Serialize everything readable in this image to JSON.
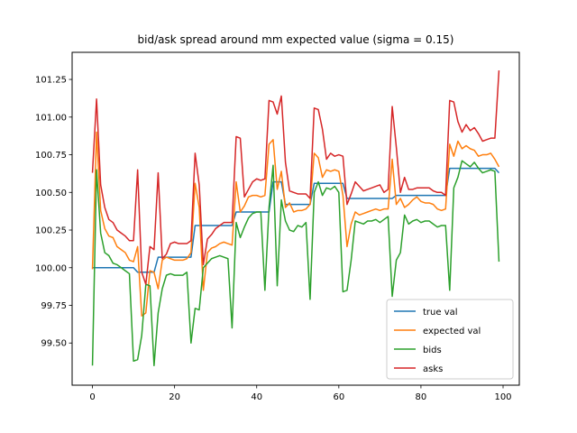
{
  "chart_data": {
    "type": "line",
    "title": "bid/ask spread around mm expected value (sigma = 0.15)",
    "xlabel": "",
    "ylabel": "",
    "xlim": [
      -4.95,
      103.95
    ],
    "ylim": [
      99.22,
      101.43
    ],
    "xticks": [
      0,
      20,
      40,
      60,
      80,
      100
    ],
    "yticks": [
      99.5,
      99.75,
      100.0,
      100.25,
      100.5,
      100.75,
      101.0,
      101.25
    ],
    "ytick_labels": [
      "99.50",
      "99.75",
      "100.00",
      "100.25",
      "100.50",
      "100.75",
      "101.00",
      "101.25"
    ],
    "grid": false,
    "legend_position": "lower right",
    "series": [
      {
        "name": "true val",
        "color": "#1f77b4",
        "x": [
          0,
          1,
          10,
          11,
          15,
          16,
          24,
          25,
          34,
          35,
          43,
          44,
          46,
          47,
          53,
          54,
          61,
          62,
          73,
          74,
          86,
          87,
          98,
          99
        ],
        "y": [
          100.0,
          100.0,
          100.0,
          99.97,
          99.97,
          100.07,
          100.07,
          100.28,
          100.28,
          100.37,
          100.37,
          100.57,
          100.57,
          100.42,
          100.42,
          100.56,
          100.56,
          100.46,
          100.46,
          100.48,
          100.48,
          100.66,
          100.66,
          100.63
        ]
      },
      {
        "name": "expected val",
        "color": "#ff7f0e",
        "x": [
          0,
          1,
          2,
          3,
          4,
          5,
          6,
          7,
          8,
          9,
          10,
          11,
          12,
          13,
          14,
          15,
          16,
          17,
          18,
          19,
          20,
          21,
          22,
          23,
          24,
          25,
          26,
          27,
          28,
          29,
          30,
          31,
          32,
          33,
          34,
          35,
          36,
          37,
          38,
          39,
          40,
          41,
          42,
          43,
          44,
          45,
          46,
          47,
          48,
          49,
          50,
          51,
          52,
          53,
          54,
          55,
          56,
          57,
          58,
          59,
          60,
          61,
          62,
          63,
          64,
          65,
          66,
          67,
          68,
          69,
          70,
          71,
          72,
          73,
          74,
          75,
          76,
          77,
          78,
          79,
          80,
          81,
          82,
          83,
          84,
          85,
          86,
          87,
          88,
          89,
          90,
          91,
          92,
          93,
          94,
          95,
          96,
          97,
          98,
          99
        ],
        "y": [
          99.99,
          100.9,
          100.38,
          100.26,
          100.21,
          100.2,
          100.14,
          100.12,
          100.1,
          100.05,
          100.04,
          100.14,
          99.68,
          99.7,
          99.98,
          99.97,
          99.86,
          100.05,
          100.07,
          100.06,
          100.05,
          100.05,
          100.05,
          100.06,
          100.1,
          100.56,
          100.4,
          99.85,
          100.1,
          100.13,
          100.14,
          100.16,
          100.17,
          100.16,
          100.15,
          100.57,
          100.37,
          100.41,
          100.47,
          100.48,
          100.48,
          100.47,
          100.48,
          100.82,
          100.85,
          100.52,
          100.64,
          100.4,
          100.43,
          100.37,
          100.38,
          100.38,
          100.39,
          100.42,
          100.76,
          100.73,
          100.6,
          100.65,
          100.64,
          100.65,
          100.64,
          100.48,
          100.14,
          100.29,
          100.37,
          100.35,
          100.36,
          100.37,
          100.38,
          100.39,
          100.38,
          100.39,
          100.39,
          100.72,
          100.42,
          100.46,
          100.4,
          100.42,
          100.45,
          100.47,
          100.44,
          100.43,
          100.43,
          100.42,
          100.39,
          100.38,
          100.39,
          100.82,
          100.74,
          100.84,
          100.79,
          100.81,
          100.79,
          100.78,
          100.74,
          100.75,
          100.75,
          100.76,
          100.72,
          100.67
        ]
      },
      {
        "name": "bids",
        "color": "#2ca02c",
        "x": [
          0,
          1,
          2,
          3,
          4,
          5,
          6,
          7,
          8,
          9,
          10,
          11,
          12,
          13,
          14,
          15,
          16,
          17,
          18,
          19,
          20,
          21,
          22,
          23,
          24,
          25,
          26,
          27,
          28,
          29,
          30,
          31,
          32,
          33,
          34,
          35,
          36,
          37,
          38,
          39,
          40,
          41,
          42,
          43,
          44,
          45,
          46,
          47,
          48,
          49,
          50,
          51,
          52,
          53,
          54,
          55,
          56,
          57,
          58,
          59,
          60,
          61,
          62,
          63,
          64,
          65,
          66,
          67,
          68,
          69,
          70,
          71,
          72,
          73,
          74,
          75,
          76,
          77,
          78,
          79,
          80,
          81,
          82,
          83,
          84,
          85,
          86,
          87,
          88,
          89,
          90,
          91,
          92,
          93,
          94,
          95,
          96,
          97,
          98,
          99
        ],
        "y": [
          99.35,
          100.65,
          100.23,
          100.1,
          100.08,
          100.03,
          100.02,
          100.0,
          99.98,
          99.96,
          99.38,
          99.39,
          99.55,
          99.89,
          99.88,
          99.35,
          99.7,
          99.86,
          99.95,
          99.96,
          99.95,
          99.95,
          99.95,
          99.97,
          99.5,
          99.73,
          99.72,
          100.0,
          100.03,
          100.06,
          100.07,
          100.08,
          100.07,
          100.06,
          99.6,
          100.3,
          100.2,
          100.27,
          100.33,
          100.36,
          100.37,
          100.37,
          99.85,
          100.4,
          100.68,
          99.88,
          100.45,
          100.31,
          100.25,
          100.24,
          100.28,
          100.27,
          100.3,
          99.79,
          100.5,
          100.57,
          100.48,
          100.53,
          100.52,
          100.54,
          100.5,
          99.84,
          99.85,
          100.05,
          100.31,
          100.3,
          100.29,
          100.31,
          100.31,
          100.32,
          100.3,
          100.32,
          100.34,
          99.81,
          100.05,
          100.1,
          100.35,
          100.29,
          100.31,
          100.32,
          100.3,
          100.31,
          100.31,
          100.29,
          100.27,
          100.28,
          100.28,
          99.85,
          100.53,
          100.6,
          100.71,
          100.69,
          100.67,
          100.7,
          100.66,
          100.63,
          100.64,
          100.65,
          100.64,
          100.04
        ]
      },
      {
        "name": "asks",
        "color": "#d62728",
        "x": [
          0,
          1,
          2,
          3,
          4,
          5,
          6,
          7,
          8,
          9,
          10,
          11,
          12,
          13,
          14,
          15,
          16,
          17,
          18,
          19,
          20,
          21,
          22,
          23,
          24,
          25,
          26,
          27,
          28,
          29,
          30,
          31,
          32,
          33,
          34,
          35,
          36,
          37,
          38,
          39,
          40,
          41,
          42,
          43,
          44,
          45,
          46,
          47,
          48,
          49,
          50,
          51,
          52,
          53,
          54,
          55,
          56,
          57,
          58,
          59,
          60,
          61,
          62,
          63,
          64,
          65,
          66,
          67,
          68,
          69,
          70,
          71,
          72,
          73,
          74,
          75,
          76,
          77,
          78,
          79,
          80,
          81,
          82,
          83,
          84,
          85,
          86,
          87,
          88,
          89,
          90,
          91,
          92,
          93,
          94,
          95,
          96,
          97,
          98,
          99
        ],
        "y": [
          100.63,
          101.12,
          100.55,
          100.4,
          100.32,
          100.3,
          100.25,
          100.23,
          100.21,
          100.18,
          100.18,
          100.65,
          99.97,
          99.89,
          100.14,
          100.12,
          100.63,
          100.06,
          100.09,
          100.16,
          100.17,
          100.16,
          100.16,
          100.16,
          100.18,
          100.76,
          100.55,
          100.02,
          100.19,
          100.22,
          100.26,
          100.28,
          100.3,
          100.3,
          100.3,
          100.87,
          100.86,
          100.47,
          100.52,
          100.57,
          100.59,
          100.58,
          100.59,
          101.11,
          101.1,
          101.02,
          101.14,
          100.7,
          100.51,
          100.5,
          100.49,
          100.49,
          100.49,
          100.46,
          101.06,
          101.05,
          100.92,
          100.72,
          100.76,
          100.74,
          100.75,
          100.74,
          100.42,
          100.49,
          100.57,
          100.54,
          100.51,
          100.52,
          100.53,
          100.54,
          100.55,
          100.5,
          100.52,
          101.07,
          100.8,
          100.5,
          100.6,
          100.52,
          100.52,
          100.53,
          100.53,
          100.53,
          100.53,
          100.51,
          100.5,
          100.5,
          100.48,
          101.11,
          101.1,
          100.97,
          100.9,
          100.95,
          100.91,
          100.93,
          100.89,
          100.84,
          100.85,
          100.86,
          100.86,
          101.31
        ]
      }
    ]
  }
}
